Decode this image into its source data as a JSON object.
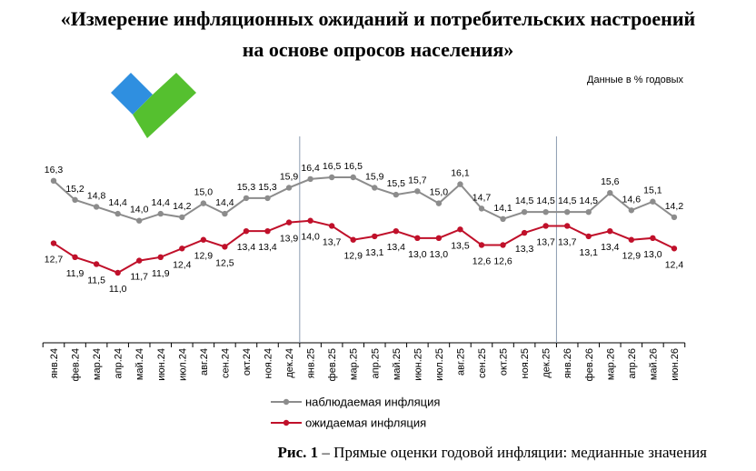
{
  "title_line1": "«Измерение инфляционных ожиданий и потребительских настроений",
  "title_line2": "на основе опросов населения»",
  "units_note": "Данные в % годовых",
  "caption": {
    "prefix": "Рис. 1",
    "text": " – Прямые оценки годовой инфляции: медианные значения"
  },
  "chart_data": {
    "type": "line",
    "categories": [
      "янв.24",
      "фев.24",
      "мар.24",
      "апр.24",
      "май.24",
      "июн.24",
      "июл.24",
      "авг.24",
      "сен.24",
      "окт.24",
      "ноя.24",
      "дек.24",
      "янв.25",
      "фев.25",
      "мар.25",
      "апр.25",
      "май.25",
      "июн.25",
      "июл.25",
      "авг.25",
      "сен.25",
      "окт.25",
      "ноя.25",
      "дек.25",
      "янв.26",
      "фев.26",
      "мар.26",
      "апр.26",
      "май.26",
      "июн.26"
    ],
    "series": [
      {
        "name": "наблюдаемая инфляция",
        "color": "#8c8c8c",
        "values": [
          16.3,
          15.2,
          14.8,
          14.4,
          14.0,
          14.4,
          14.2,
          15.0,
          14.4,
          15.3,
          15.3,
          15.9,
          16.4,
          16.5,
          16.5,
          15.9,
          15.5,
          15.7,
          15.0,
          16.1,
          14.7,
          14.1,
          14.5,
          14.5,
          14.5,
          14.5,
          15.6,
          14.6,
          15.1,
          14.2
        ],
        "labels": [
          "16,3",
          "15,2",
          "14,8",
          "14,4",
          "14,0",
          "14,4",
          "14,2",
          "15,0",
          "14,4",
          "15,3",
          "15,3",
          "15,9",
          "16,4",
          "16,5",
          "16,5",
          "15,9",
          "15,5",
          "15,7",
          "15,0",
          "16,1",
          "14,7",
          "14,1",
          "14,5",
          "14,5",
          "14,5",
          "14,5",
          "15,6",
          "14,6",
          "15,1",
          "14,2"
        ]
      },
      {
        "name": "ожидаемая инфляция",
        "color": "#c0102a",
        "values": [
          12.7,
          11.9,
          11.5,
          11.0,
          11.7,
          11.9,
          12.4,
          12.9,
          12.5,
          13.4,
          13.4,
          13.9,
          14.0,
          13.7,
          12.9,
          13.1,
          13.4,
          13.0,
          13.0,
          13.5,
          12.6,
          12.6,
          13.3,
          13.7,
          13.7,
          13.1,
          13.4,
          12.9,
          13.0,
          12.4
        ],
        "labels": [
          "12,7",
          "11,9",
          "11,5",
          "11,0",
          "11,7",
          "11,9",
          "12,4",
          "12,9",
          "12,5",
          "13,4",
          "13,4",
          "13,9",
          "14,0",
          "13,7",
          "12,9",
          "13,1",
          "13,4",
          "13,0",
          "13,0",
          "13,5",
          "12,6",
          "12,6",
          "13,3",
          "13,7",
          "13,7",
          "13,1",
          "13,4",
          "12,9",
          "13,0",
          "12,4"
        ]
      }
    ],
    "year_separators_after": [
      "дек.24",
      "дек.25"
    ],
    "legend_position": "bottom-center",
    "grid": false,
    "colors": {
      "logo_blue": "#2f8fe0",
      "logo_green": "#55c02f"
    }
  }
}
